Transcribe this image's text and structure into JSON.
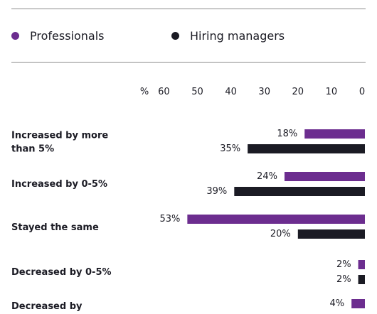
{
  "chart_data": {
    "type": "bar",
    "orientation": "horizontal",
    "axis_direction": "reversed",
    "axis_unit": "%",
    "xlim": [
      0,
      60
    ],
    "ticks": [
      60,
      50,
      40,
      30,
      20,
      10,
      0
    ],
    "legend_position": "top",
    "categories": [
      "Increased by more than 5%",
      "Increased by 0-5%",
      "Stayed the same",
      "Decreased by 0-5%",
      "Decreased by"
    ],
    "series": [
      {
        "name": "Professionals",
        "color": "#6c2d8f",
        "values": [
          18,
          24,
          53,
          2,
          4
        ]
      },
      {
        "name": "Hiring managers",
        "color": "#1b1b24",
        "values": [
          35,
          39,
          20,
          2,
          null
        ]
      }
    ],
    "data_labels": [
      [
        "18%",
        "24%",
        "53%",
        "2%",
        "4%"
      ],
      [
        "35%",
        "39%",
        "20%",
        "2%",
        ""
      ]
    ],
    "category_label_lines": [
      [
        "Increased by more",
        "than 5%"
      ],
      [
        "Increased by 0-5%"
      ],
      [
        "Stayed the same"
      ],
      [
        "Decreased by 0-5%"
      ],
      [
        "Decreased by"
      ]
    ]
  }
}
